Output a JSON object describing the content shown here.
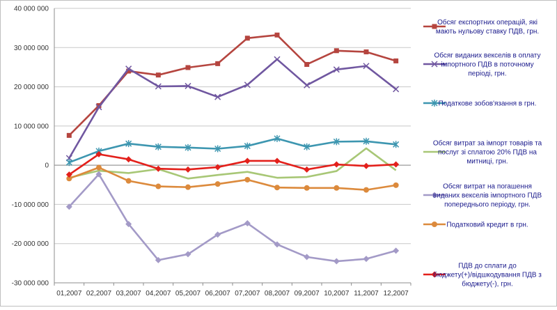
{
  "chart_data": {
    "type": "line",
    "categories": [
      "01,2007",
      "02,2007",
      "03,2007",
      "04,2007",
      "05,2007",
      "06,2007",
      "07,2007",
      "08,2007",
      "09,2007",
      "10,2007",
      "11,2007",
      "12,2007"
    ],
    "y_tick_labels": [
      "40 000 000",
      "30 000 000",
      "20 000 000",
      "10 000 000",
      "0",
      "-10 000 000",
      "-20 000 000",
      "-30 000 000"
    ],
    "ylim": [
      -30000000,
      40000000
    ],
    "y_step": 10000000,
    "grid": true,
    "legend_position": "right",
    "series": [
      {
        "name": "Обсяг експортних операцій, які мають нульову ставку ПДВ, грн.",
        "legend_lines": [
          "Обсяг експортних операцій, які",
          "мають нульову ставку ПДВ, грн."
        ],
        "color": "#b5453f",
        "marker": "square",
        "values": [
          7600000,
          15200000,
          24000000,
          23000000,
          24900000,
          25900000,
          32400000,
          33200000,
          25700000,
          29200000,
          28900000,
          26600000
        ]
      },
      {
        "name": "Обсяг виданих векселів в оплату імпортного ПДВ в поточному періоді, грн.",
        "legend_lines": [
          "Обсяг виданих векселів в оплату",
          "імпортного ПДВ в поточному",
          "періоді, грн."
        ],
        "color": "#7057a0",
        "marker": "x",
        "values": [
          1800000,
          14800000,
          24600000,
          20100000,
          20200000,
          17400000,
          20500000,
          27000000,
          20400000,
          24400000,
          25300000,
          19400000
        ]
      },
      {
        "name": "Податкове зобов'язання в грн.",
        "legend_lines": [
          "Податкове зобов'язання в грн."
        ],
        "color": "#3d96b0",
        "marker": "asterisk",
        "values": [
          700000,
          3600000,
          5500000,
          4700000,
          4500000,
          4200000,
          4900000,
          6800000,
          4700000,
          6000000,
          6100000,
          5300000
        ]
      },
      {
        "name": "Обсяг витрат за імпорт товарів та послуг зі сплатою 20% ПДВ на митниці, грн.",
        "legend_lines": [
          "Обсяг витрат за імпорт товарів та",
          "послуг зі сплатою 20% ПДВ  на",
          "митниці, грн."
        ],
        "color": "#a8c776",
        "marker": "none",
        "values": [
          -3200000,
          -1400000,
          -2000000,
          -1000000,
          -3400000,
          -2500000,
          -1700000,
          -3200000,
          -3000000,
          -1500000,
          4300000,
          -1300000
        ]
      },
      {
        "name": "Обсяг витрат на погашення виданих векселів імпортного ПДВ попереднього періоду, грн.",
        "legend_lines": [
          "Обсяг витрат на погашення",
          "виданих векселів імпортного ПДВ",
          "попереднього періоду, грн."
        ],
        "color": "#a39ac7",
        "marker": "diamond",
        "values": [
          -10600000,
          -2300000,
          -15000000,
          -24200000,
          -22700000,
          -17700000,
          -14800000,
          -20200000,
          -23400000,
          -24500000,
          -23900000,
          -21800000
        ]
      },
      {
        "name": "Податковий кредит в грн.",
        "legend_lines": [
          "Податковий кредит в грн."
        ],
        "color": "#dc8a3c",
        "marker": "circle",
        "values": [
          -3400000,
          -600000,
          -4000000,
          -5400000,
          -5600000,
          -4800000,
          -3700000,
          -5700000,
          -5800000,
          -5800000,
          -6300000,
          -5100000
        ]
      },
      {
        "name": "ПДВ до сплати до бюджету(+)/відшкодування ПДВ з бюджету(-), грн.",
        "legend_lines": [
          "ПДВ до сплати до",
          "бюджету(+)/відшкодування  ПДВ з",
          "бюджету(-), грн."
        ],
        "color": "#e3201b",
        "marker": "diamond",
        "values": [
          -2400000,
          2800000,
          1500000,
          -900000,
          -1100000,
          -500000,
          1100000,
          1100000,
          -1100000,
          200000,
          -200000,
          200000
        ]
      }
    ]
  }
}
